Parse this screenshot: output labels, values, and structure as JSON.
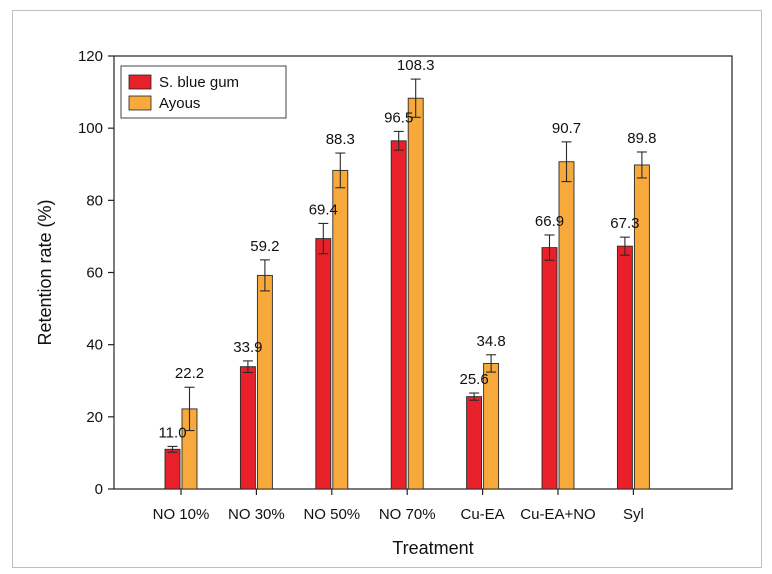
{
  "chart_data": {
    "type": "bar",
    "xlabel": "Treatment",
    "ylabel": "Retention rate (%)",
    "ylim": [
      0,
      120
    ],
    "yticks": [
      0,
      20,
      40,
      60,
      80,
      100,
      120
    ],
    "categories": [
      "NO 10%",
      "NO 30%",
      "NO 50%",
      "NO 70%",
      "Cu-EA",
      "Cu-EA+NO",
      "Syl"
    ],
    "legend_position": "top-left",
    "grid": false,
    "series": [
      {
        "name": "S. blue gum",
        "color": "#e8202a",
        "values": [
          11.0,
          33.9,
          69.4,
          96.5,
          25.6,
          66.9,
          67.3
        ],
        "labels": [
          "11.0",
          "33.9",
          "69.4",
          "96.5",
          "25.6",
          "66.9",
          "67.3"
        ],
        "errors": [
          0.8,
          1.6,
          4.2,
          2.6,
          1.0,
          3.5,
          2.5
        ]
      },
      {
        "name": "Ayous",
        "color": "#f7a93b",
        "values": [
          22.2,
          59.2,
          88.3,
          108.3,
          34.8,
          90.7,
          89.8
        ],
        "labels": [
          "22.2",
          "59.2",
          "88.3",
          "108.3",
          "34.8",
          "90.7",
          "89.8"
        ],
        "errors": [
          6.0,
          4.3,
          4.8,
          5.3,
          2.4,
          5.5,
          3.6
        ]
      }
    ]
  }
}
